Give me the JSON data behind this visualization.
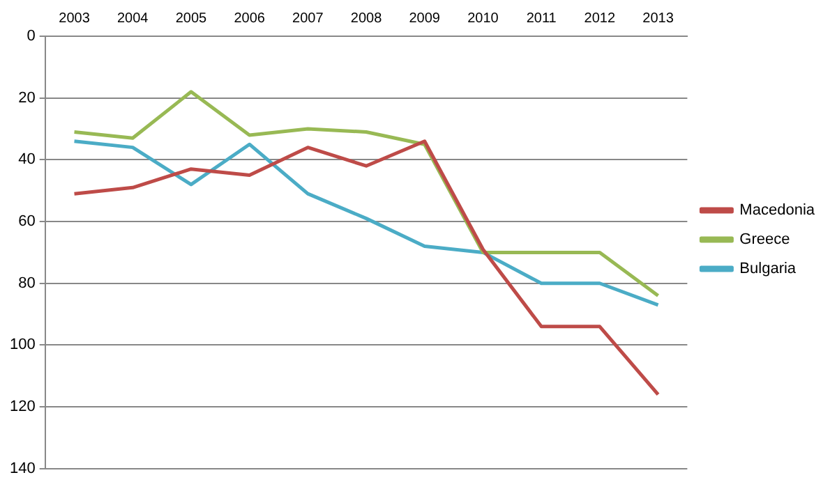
{
  "chart_data": {
    "type": "line",
    "categories": [
      "2003",
      "2004",
      "2005",
      "2006",
      "2007",
      "2008",
      "2009",
      "2010",
      "2011",
      "2012",
      "2013"
    ],
    "series": [
      {
        "name": "Macedonia",
        "color": "#be4b48",
        "values": [
          51,
          49,
          43,
          45,
          36,
          42,
          34,
          69,
          94,
          94,
          116
        ]
      },
      {
        "name": "Greece",
        "color": "#98b954",
        "values": [
          31,
          33,
          18,
          32,
          30,
          31,
          35,
          70,
          70,
          70,
          84
        ]
      },
      {
        "name": "Bulgaria",
        "color": "#4bacc6",
        "values": [
          34,
          36,
          48,
          35,
          51,
          59,
          68,
          70,
          80,
          80,
          87
        ]
      }
    ],
    "ylim": [
      140,
      0
    ],
    "yticks": [
      0,
      20,
      40,
      60,
      80,
      100,
      120,
      140
    ],
    "grid": "y",
    "legend": "right",
    "marker": "none",
    "line_style": "solid"
  }
}
